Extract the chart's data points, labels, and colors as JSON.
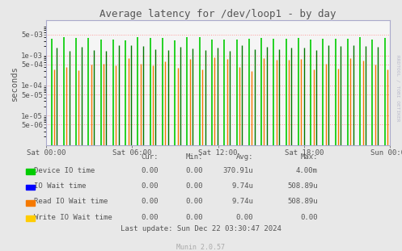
{
  "title": "Average latency for /dev/loop1 - by day",
  "ylabel": "seconds",
  "background_color": "#e8e8e8",
  "plot_bg_color": "#f5f5f5",
  "grid_color": "#ff9999",
  "title_color": "#555555",
  "axis_label_color": "#555555",
  "tick_label_color": "#555555",
  "watermark_text": "RRDTOOL / TOBI OETIKER",
  "munin_text": "Munin 2.0.57",
  "ylim_min": 1e-06,
  "ylim_max": 0.015,
  "yticks": [
    5e-06,
    1e-05,
    5e-05,
    0.0001,
    0.0005,
    0.001,
    0.005
  ],
  "ytick_labels": [
    "5e-06",
    "1e-05",
    "5e-05",
    "1e-04",
    "5e-04",
    "1e-03",
    "5e-03"
  ],
  "xticklabels": [
    "Sat 00:00",
    "Sat 06:00",
    "Sat 12:00",
    "Sat 18:00",
    "Sun 00:00"
  ],
  "legend_entries": [
    {
      "label": "Device IO time",
      "color": "#00cc00"
    },
    {
      "label": "IO Wait time",
      "color": "#0000ff"
    },
    {
      "label": "Read IO Wait time",
      "color": "#f57900"
    },
    {
      "label": "Write IO Wait time",
      "color": "#ffcc00"
    }
  ],
  "legend_stats": {
    "headers": [
      "Cur:",
      "Min:",
      "Avg:",
      "Max:"
    ],
    "rows": [
      [
        "0.00",
        "0.00",
        "370.91u",
        "4.00m"
      ],
      [
        "0.00",
        "0.00",
        "9.74u",
        "508.89u"
      ],
      [
        "0.00",
        "0.00",
        "9.74u",
        "508.89u"
      ],
      [
        "0.00",
        "0.00",
        "0.00",
        "0.00"
      ]
    ]
  },
  "last_update": "Last update: Sun Dec 22 03:30:47 2024",
  "green_color": "#00cc00",
  "dark_green_color": "#007700",
  "orange_color": "#f57900"
}
